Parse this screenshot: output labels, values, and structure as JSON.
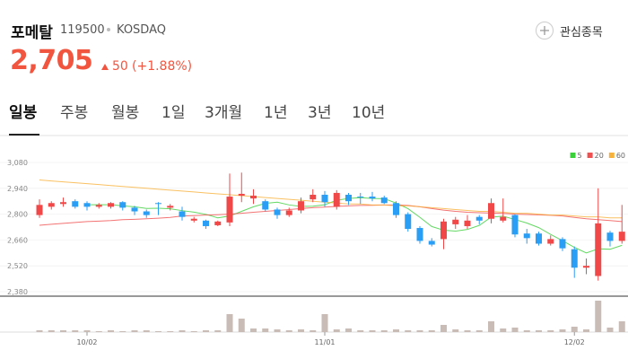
{
  "header": {
    "name": "포메탈",
    "code": "119500",
    "market": "KOSDAQ",
    "price": "2,705",
    "change": "50",
    "change_pct": "(+1.88%)",
    "watch_button": "관심종목"
  },
  "tabs": [
    "일봉",
    "주봉",
    "월봉",
    "1일",
    "3개월",
    "1년",
    "3년",
    "10년"
  ],
  "active_tab": 0,
  "chart_data": {
    "type": "candlestick",
    "categories": [
      null,
      null,
      null,
      null,
      "10/02",
      null,
      null,
      null,
      null,
      null,
      null,
      null,
      null,
      null,
      null,
      null,
      null,
      null,
      null,
      null,
      null,
      null,
      null,
      null,
      "11/01",
      null,
      null,
      null,
      null,
      null,
      null,
      null,
      null,
      null,
      null,
      null,
      null,
      null,
      null,
      null,
      null,
      null,
      null,
      null,
      null,
      "12/02",
      null,
      null,
      null,
      null
    ],
    "open": [
      2795,
      2840,
      2855,
      2870,
      2860,
      2840,
      2840,
      2865,
      2835,
      2815,
      2860,
      2835,
      2815,
      2765,
      2765,
      2740,
      2755,
      2900,
      2885,
      2870,
      2825,
      2795,
      2820,
      2880,
      2905,
      2840,
      2905,
      2895,
      2895,
      2890,
      2860,
      2800,
      2725,
      2655,
      2665,
      2745,
      2735,
      2785,
      2775,
      2765,
      2795,
      2695,
      2695,
      2640,
      2665,
      2610,
      2510,
      2465,
      2700,
      2655
    ],
    "high": [
      2880,
      2870,
      2890,
      2880,
      2870,
      2860,
      2865,
      2870,
      2845,
      2825,
      2865,
      2855,
      2840,
      2785,
      2770,
      2765,
      3020,
      3025,
      2935,
      2880,
      2835,
      2835,
      2890,
      2935,
      2925,
      2930,
      2915,
      2915,
      2920,
      2900,
      2870,
      2810,
      2735,
      2670,
      2775,
      2785,
      2795,
      2795,
      2885,
      2885,
      2800,
      2720,
      2705,
      2685,
      2675,
      2625,
      2560,
      2940,
      2710,
      2850
    ],
    "low": [
      2780,
      2825,
      2840,
      2830,
      2820,
      2830,
      2830,
      2820,
      2795,
      2780,
      2795,
      2820,
      2765,
      2755,
      2720,
      2735,
      2735,
      2865,
      2855,
      2815,
      2775,
      2785,
      2805,
      2865,
      2840,
      2825,
      2850,
      2855,
      2870,
      2855,
      2780,
      2705,
      2640,
      2625,
      2610,
      2720,
      2720,
      2745,
      2750,
      2755,
      2675,
      2640,
      2630,
      2630,
      2600,
      2455,
      2475,
      2440,
      2625,
      2640
    ],
    "close": [
      2850,
      2860,
      2865,
      2840,
      2840,
      2850,
      2860,
      2835,
      2815,
      2795,
      2855,
      2845,
      2785,
      2775,
      2735,
      2760,
      2895,
      2910,
      2900,
      2825,
      2795,
      2820,
      2870,
      2905,
      2865,
      2915,
      2870,
      2890,
      2885,
      2860,
      2795,
      2720,
      2655,
      2635,
      2760,
      2770,
      2765,
      2765,
      2860,
      2785,
      2690,
      2670,
      2640,
      2665,
      2615,
      2510,
      2520,
      2750,
      2655,
      2705
    ],
    "volume": [
      20000,
      20000,
      20000,
      20000,
      20000,
      10000,
      20000,
      10000,
      20000,
      20000,
      10000,
      10000,
      20000,
      10000,
      20000,
      20000,
      200000,
      150000,
      40000,
      40000,
      30000,
      20000,
      30000,
      20000,
      200000,
      30000,
      40000,
      20000,
      20000,
      20000,
      30000,
      20000,
      20000,
      20000,
      80000,
      30000,
      20000,
      20000,
      120000,
      40000,
      50000,
      20000,
      20000,
      20000,
      30000,
      60000,
      30000,
      350000,
      50000,
      120000
    ],
    "up_color": "#f04848",
    "down_color": "#2a9df4",
    "volume_color": "#c9bbb5",
    "ylim": [
      2380,
      3080
    ],
    "yticks": [
      {
        "value": 3080,
        "label": "3,080"
      },
      {
        "value": 2940,
        "label": "2,940"
      },
      {
        "value": 2800,
        "label": "2,800"
      },
      {
        "value": 2660,
        "label": "2,660"
      },
      {
        "value": 2520,
        "label": "2,520"
      },
      {
        "value": 2380,
        "label": "2,380"
      }
    ],
    "grid": true,
    "legend": "top-right",
    "series": [
      {
        "name": "5",
        "color": "#3ccf3c",
        "values": [
          null,
          null,
          null,
          null,
          2851,
          2851,
          2851,
          2845,
          2840,
          2831,
          2832,
          2829,
          2819,
          2811,
          2799,
          2780,
          2790,
          2815,
          2840,
          2858,
          2865,
          2850,
          2842,
          2843,
          2851,
          2875,
          2885,
          2889,
          2885,
          2884,
          2860,
          2830,
          2783,
          2733,
          2713,
          2708,
          2717,
          2739,
          2784,
          2789,
          2771,
          2752,
          2727,
          2690,
          2656,
          2620,
          2590,
          2612,
          2610,
          2631
        ]
      },
      {
        "name": "20",
        "color": "#f05050",
        "values": [
          2740,
          2745,
          2750,
          2755,
          2760,
          2762,
          2765,
          2770,
          2772,
          2775,
          2778,
          2782,
          2790,
          2792,
          2795,
          2797,
          2800,
          2805,
          2810,
          2815,
          2820,
          2825,
          2830,
          2835,
          2838,
          2842,
          2845,
          2847,
          2848,
          2850,
          2850,
          2847,
          2840,
          2830,
          2822,
          2815,
          2810,
          2808,
          2806,
          2804,
          2800,
          2798,
          2796,
          2794,
          2790,
          2782,
          2775,
          2770,
          2765,
          2760
        ]
      },
      {
        "name": "60",
        "color": "#f7b23b",
        "values": [
          2985,
          2980,
          2975,
          2970,
          2965,
          2960,
          2955,
          2950,
          2945,
          2940,
          2935,
          2930,
          2925,
          2920,
          2915,
          2910,
          2905,
          2900,
          2895,
          2890,
          2885,
          2880,
          2875,
          2870,
          2865,
          2860,
          2855,
          2855,
          2850,
          2850,
          2845,
          2845,
          2840,
          2835,
          2830,
          2825,
          2820,
          2815,
          2815,
          2810,
          2805,
          2805,
          2800,
          2795,
          2795,
          2790,
          2785,
          2785,
          2780,
          2780
        ]
      }
    ]
  }
}
